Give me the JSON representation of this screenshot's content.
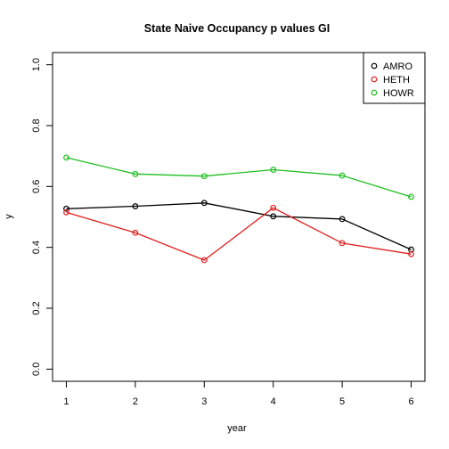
{
  "chart_data": {
    "type": "line",
    "title": "State Naive Occupancy p values GI",
    "xlabel": "year",
    "ylabel": "y",
    "x": [
      1,
      2,
      3,
      4,
      5,
      6
    ],
    "xticks": [
      "1",
      "2",
      "3",
      "4",
      "5",
      "6"
    ],
    "yticks": [
      "0.0",
      "0.2",
      "0.4",
      "0.6",
      "0.8",
      "1.0"
    ],
    "xlim": [
      0.8,
      6.2
    ],
    "ylim": [
      -0.04,
      1.04
    ],
    "grid": false,
    "legend_position": "top-right",
    "series": [
      {
        "name": "AMRO",
        "color": "#000000",
        "values": [
          0.527,
          0.535,
          0.546,
          0.502,
          0.493,
          0.393
        ]
      },
      {
        "name": "HETH",
        "color": "#df1f1f",
        "values": [
          0.515,
          0.448,
          0.358,
          0.53,
          0.414,
          0.378
        ]
      },
      {
        "name": "HOWR",
        "color": "#1fbf1f",
        "values": [
          0.695,
          0.641,
          0.634,
          0.655,
          0.636,
          0.566
        ]
      }
    ]
  }
}
